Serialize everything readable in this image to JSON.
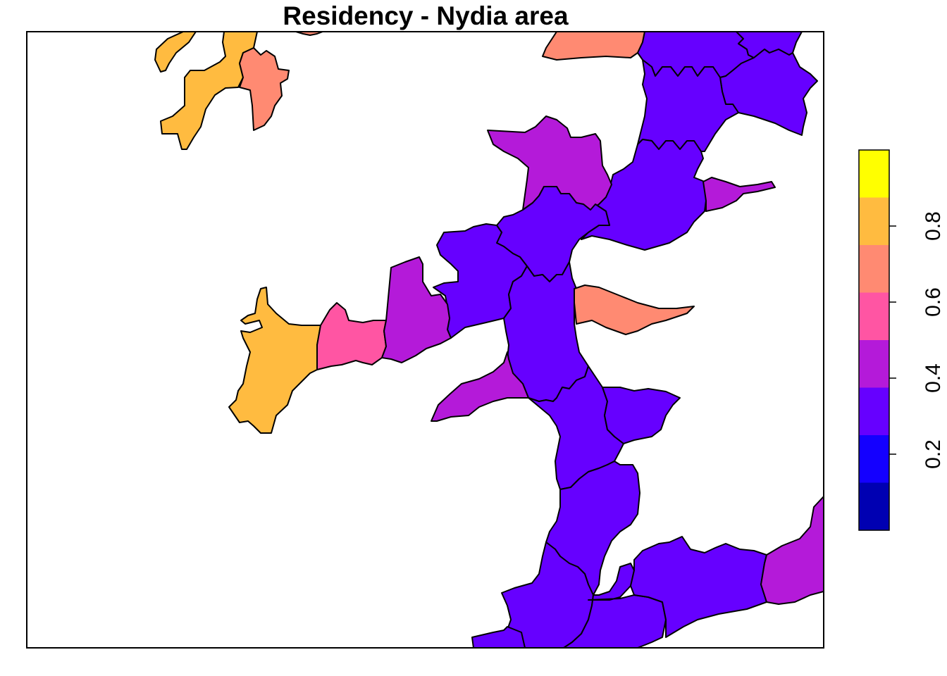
{
  "title": "Residency - Nydia area",
  "palette": {
    "b1": "#0000B2",
    "b2": "#1400FF",
    "b3": "#6600FF",
    "b4": "#B41AD9",
    "b5": "#FF55A3",
    "b6": "#FF8A72",
    "b7": "#FFBB40",
    "b8": "#FFFF00"
  },
  "legend": {
    "ticks": [
      {
        "label": "0.2",
        "value": 0.2
      },
      {
        "label": "0.4",
        "value": 0.4
      },
      {
        "label": "0.6",
        "value": 0.6
      },
      {
        "label": "0.8",
        "value": 0.8
      }
    ],
    "range": [
      0.0,
      1.0
    ]
  }
}
